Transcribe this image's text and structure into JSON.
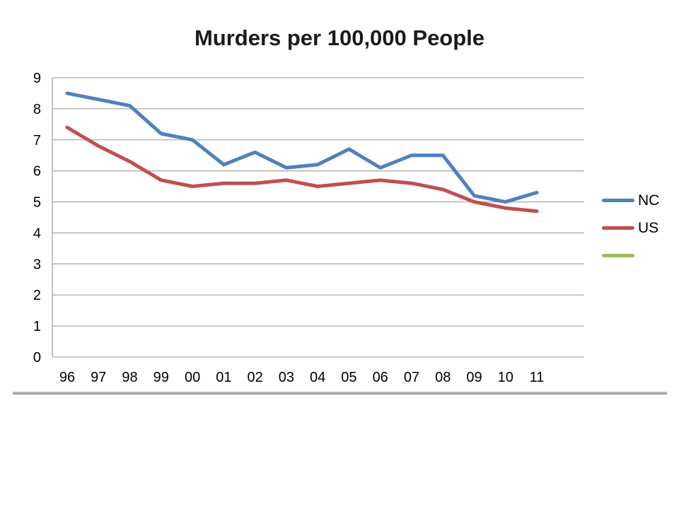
{
  "slide": {
    "background_color": "#ffffff",
    "divider_line_color": "#a6a6a6"
  },
  "chart": {
    "title": "Murders per 100,000 People"
  },
  "chart_data": {
    "type": "line",
    "title": "Murders per 100,000 People",
    "categories": [
      "96",
      "97",
      "98",
      "99",
      "00",
      "01",
      "02",
      "03",
      "04",
      "05",
      "06",
      "07",
      "08",
      "09",
      "10",
      "11"
    ],
    "series": [
      {
        "name": "NC",
        "color": "#4F81BD",
        "values": [
          8.5,
          8.3,
          8.1,
          7.2,
          7.0,
          6.2,
          6.6,
          6.1,
          6.2,
          6.7,
          6.1,
          6.5,
          6.5,
          5.2,
          5.0,
          5.3
        ]
      },
      {
        "name": "US",
        "color": "#C0504D",
        "values": [
          7.4,
          6.8,
          6.3,
          5.7,
          5.5,
          5.6,
          5.6,
          5.7,
          5.5,
          5.6,
          5.7,
          5.6,
          5.4,
          5.0,
          4.8,
          4.7
        ]
      },
      {
        "name": "",
        "color": "#9BBB59",
        "values": []
      }
    ],
    "xlabel": "",
    "ylabel": "",
    "ylim": [
      0,
      9
    ],
    "yticks": [
      0,
      1,
      2,
      3,
      4,
      5,
      6,
      7,
      8,
      9
    ],
    "grid": true,
    "gridline_color": "#ADADAD",
    "axis_line_color": "#A3A3A3",
    "legend_position": "right"
  }
}
